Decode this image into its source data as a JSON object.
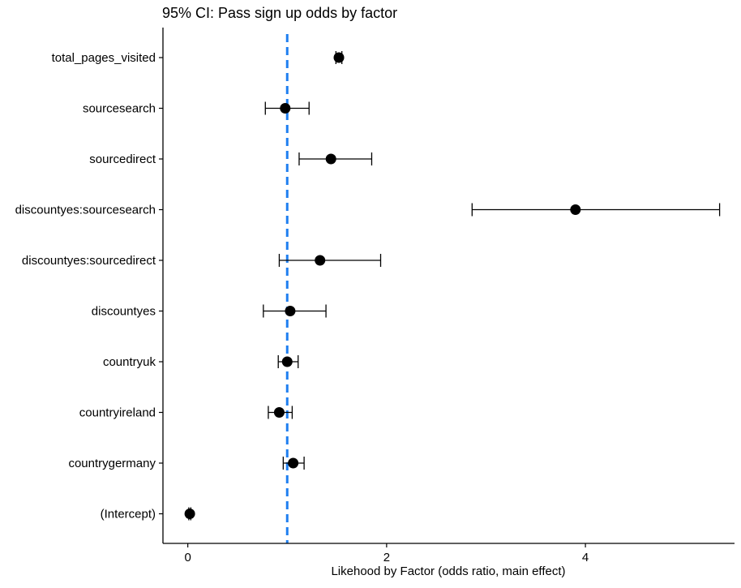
{
  "chart_data": {
    "type": "forest",
    "title": "95% CI: Pass sign up odds by factor",
    "xlabel": "Likehood by Factor (odds ratio, main effect)",
    "ylabel": "",
    "xlim": [
      -0.25,
      5.5
    ],
    "xticks": [
      0,
      2,
      4
    ],
    "xtick_labels": [
      "0",
      "2",
      "4"
    ],
    "reference_line": {
      "x": 1.0,
      "style": "dashed",
      "color": "#1f7ff0"
    },
    "grid": false,
    "legend": "none",
    "point_color": "#000000",
    "categories": [
      "total_pages_visited",
      "sourcesearch",
      "sourcedirect",
      "discountyes:sourcesearch",
      "discountyes:sourcedirect",
      "discountyes",
      "countryuk",
      "countryireland",
      "countrygermany",
      "(Intercept)"
    ],
    "estimate": [
      1.52,
      0.98,
      1.44,
      3.9,
      1.33,
      1.03,
      1.0,
      0.92,
      1.06,
      0.02
    ],
    "ci_low": [
      1.49,
      0.78,
      1.12,
      2.86,
      0.92,
      0.76,
      0.91,
      0.81,
      0.96,
      0.01
    ],
    "ci_high": [
      1.55,
      1.22,
      1.85,
      5.35,
      1.94,
      1.39,
      1.11,
      1.05,
      1.17,
      0.03
    ]
  }
}
